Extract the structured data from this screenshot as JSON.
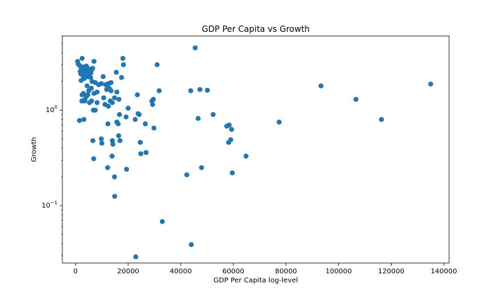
{
  "chart_data": {
    "type": "scatter",
    "title": "GDP Per Capita vs Growth",
    "xlabel": "GDP Per Capita log-level",
    "ylabel": "Growth",
    "yscale": "log",
    "xlim": [
      -5000,
      142000
    ],
    "ylim": [
      0.025,
      6.0
    ],
    "xticks": [
      0,
      20000,
      40000,
      60000,
      80000,
      100000,
      120000,
      140000
    ],
    "yticks": [
      {
        "value": 0.1,
        "label_base": "10",
        "label_exp": "−1"
      },
      {
        "value": 1.0,
        "label_base": "10",
        "label_exp": "0"
      }
    ],
    "grid": false,
    "legend": "none",
    "colors": {
      "points": "#1f77b4"
    },
    "points": [
      [
        800,
        3.25
      ],
      [
        1000,
        3.05
      ],
      [
        1500,
        2.95
      ],
      [
        1800,
        2.55
      ],
      [
        2000,
        2.4
      ],
      [
        2200,
        2.75
      ],
      [
        2500,
        3.5
      ],
      [
        2600,
        2.6
      ],
      [
        2800,
        2.3
      ],
      [
        3000,
        2.85
      ],
      [
        3200,
        2.5
      ],
      [
        3500,
        2.45
      ],
      [
        3800,
        2.7
      ],
      [
        4000,
        2.35
      ],
      [
        4200,
        2.9
      ],
      [
        4500,
        2.6
      ],
      [
        4800,
        2.5
      ],
      [
        5000,
        2.4
      ],
      [
        5200,
        2.3
      ],
      [
        5500,
        2.7
      ],
      [
        5800,
        2.45
      ],
      [
        6000,
        2.6
      ],
      [
        6500,
        2.75
      ],
      [
        7000,
        3.25
      ],
      [
        2100,
        2.05
      ],
      [
        3300,
        2.15
      ],
      [
        4600,
        2.25
      ],
      [
        5700,
        2.2
      ],
      [
        6300,
        2.0
      ],
      [
        7500,
        1.95
      ],
      [
        8800,
        1.85
      ],
      [
        9800,
        1.9
      ],
      [
        11500,
        1.85
      ],
      [
        12500,
        1.9
      ],
      [
        13500,
        1.95
      ],
      [
        10500,
        2.25
      ],
      [
        15500,
        2.5
      ],
      [
        17500,
        2.2
      ],
      [
        18200,
        3.0
      ],
      [
        18000,
        3.5
      ],
      [
        31000,
        3.0
      ],
      [
        45500,
        4.5
      ],
      [
        4400,
        1.8
      ],
      [
        5000,
        1.6
      ],
      [
        6000,
        1.7
      ],
      [
        7000,
        1.5
      ],
      [
        8200,
        1.55
      ],
      [
        2500,
        1.45
      ],
      [
        3000,
        1.5
      ],
      [
        3600,
        1.3
      ],
      [
        4200,
        1.4
      ],
      [
        4700,
        1.45
      ],
      [
        10700,
        1.35
      ],
      [
        11800,
        1.65
      ],
      [
        12800,
        1.7
      ],
      [
        13500,
        1.6
      ],
      [
        14800,
        1.35
      ],
      [
        15700,
        1.55
      ],
      [
        16500,
        1.3
      ],
      [
        23500,
        1.45
      ],
      [
        31800,
        1.6
      ],
      [
        43800,
        1.6
      ],
      [
        47300,
        1.65
      ],
      [
        50100,
        1.62
      ],
      [
        2400,
        1.25
      ],
      [
        3500,
        1.25
      ],
      [
        5300,
        1.2
      ],
      [
        6100,
        1.25
      ],
      [
        8200,
        1.2
      ],
      [
        11200,
        1.15
      ],
      [
        12500,
        1.1
      ],
      [
        14000,
        1.2
      ],
      [
        13200,
        1.25
      ],
      [
        29000,
        1.25
      ],
      [
        29600,
        1.3
      ],
      [
        29300,
        1.15
      ],
      [
        20000,
        1.05
      ],
      [
        6800,
        1.0
      ],
      [
        7500,
        1.0
      ],
      [
        16700,
        0.9
      ],
      [
        19200,
        0.85
      ],
      [
        22700,
        0.8
      ],
      [
        24200,
        0.9
      ],
      [
        23800,
        0.92
      ],
      [
        1500,
        0.78
      ],
      [
        3200,
        0.8
      ],
      [
        15700,
        0.75
      ],
      [
        16200,
        0.72
      ],
      [
        12300,
        0.72
      ],
      [
        26500,
        0.72
      ],
      [
        29800,
        0.65
      ],
      [
        46600,
        0.82
      ],
      [
        52300,
        0.9
      ],
      [
        57500,
        0.68
      ],
      [
        58400,
        0.7
      ],
      [
        59300,
        0.63
      ],
      [
        77400,
        0.75
      ],
      [
        116300,
        0.8
      ],
      [
        93300,
        1.8
      ],
      [
        106600,
        1.3
      ],
      [
        135000,
        1.88
      ],
      [
        6600,
        0.48
      ],
      [
        9800,
        0.5
      ],
      [
        10000,
        0.45
      ],
      [
        14000,
        0.48
      ],
      [
        14200,
        0.44
      ],
      [
        16400,
        0.54
      ],
      [
        16900,
        0.48
      ],
      [
        24600,
        0.46
      ],
      [
        58200,
        0.46
      ],
      [
        59000,
        0.49
      ],
      [
        24800,
        0.35
      ],
      [
        26800,
        0.36
      ],
      [
        13900,
        0.33
      ],
      [
        64800,
        0.33
      ],
      [
        6900,
        0.31
      ],
      [
        12200,
        0.25
      ],
      [
        19400,
        0.24
      ],
      [
        47900,
        0.25
      ],
      [
        14800,
        0.2
      ],
      [
        42300,
        0.21
      ],
      [
        59600,
        0.22
      ],
      [
        14900,
        0.125
      ],
      [
        33000,
        0.068
      ],
      [
        44000,
        0.039
      ],
      [
        22900,
        0.029
      ]
    ]
  }
}
